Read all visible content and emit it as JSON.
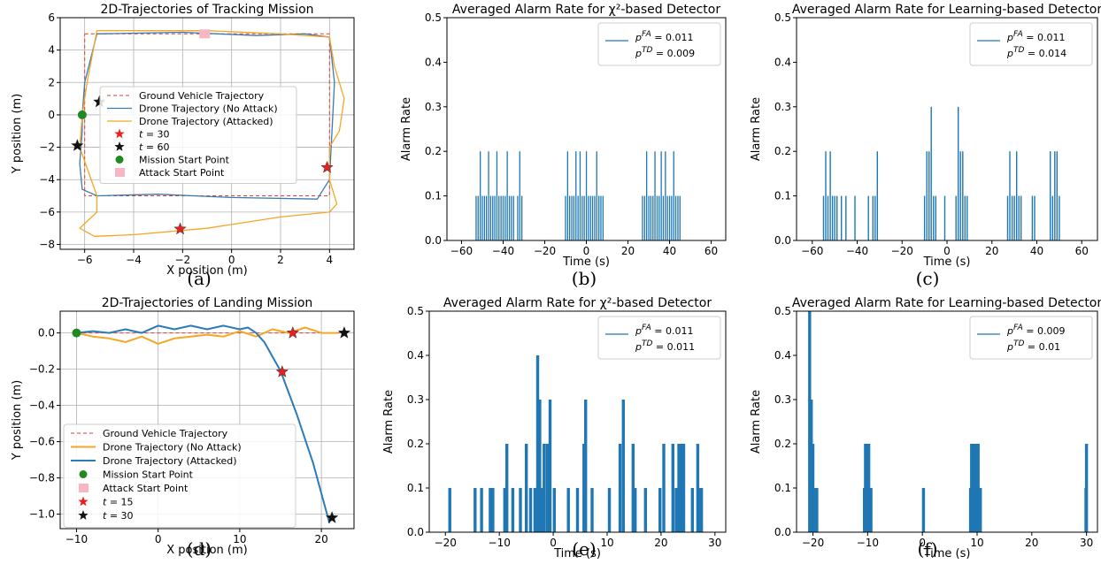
{
  "chart_data": [
    {
      "type": "line",
      "title": "2D-Trajectories of Tracking Mission",
      "xlabel": "X position (m)",
      "ylabel": "Y position (m)",
      "xlim": [
        -7,
        5
      ],
      "ylim": [
        -8.3,
        6
      ],
      "xticks": [
        -6,
        -4,
        -2,
        0,
        2,
        4
      ],
      "yticks": [
        -8,
        -6,
        -4,
        -2,
        0,
        2,
        4,
        6
      ],
      "grid": true,
      "legend": "center",
      "series": [
        {
          "name": "Ground Vehicle Trajectory",
          "color": "#e8392f",
          "style": "dashed",
          "x": [
            -6,
            4,
            4,
            -6,
            -6
          ],
          "y": [
            5,
            5,
            -5,
            -5,
            5
          ]
        },
        {
          "name": "Drone Trajectory (No Attack)",
          "color": "#3a7ab5",
          "x": [
            -6.1,
            -6,
            -5.5,
            -2,
            1,
            3,
            4,
            4.2,
            4.1,
            4.0,
            3.5,
            0,
            -3,
            -5.5,
            -6.1,
            -6.2,
            -6.1,
            -6.1
          ],
          "y": [
            0,
            2,
            5,
            5.1,
            4.9,
            5,
            4.8,
            2,
            -1,
            -4,
            -5.2,
            -5.1,
            -4.9,
            -5,
            -4.6,
            -3,
            -1,
            0
          ]
        },
        {
          "name": "Drone Trajectory (Attacked)",
          "color": "#f5a623",
          "x": [
            -6.1,
            -5.9,
            -5.5,
            -1,
            2,
            4,
            4.2,
            4.6,
            4.4,
            4,
            4,
            4.3,
            4,
            2,
            -1,
            -4,
            -5.6,
            -6.2,
            -5.5,
            -5.5,
            -6.2,
            -6.1
          ],
          "y": [
            0,
            2,
            5.2,
            5.2,
            5,
            4.8,
            3,
            1,
            -1,
            -2,
            -4,
            -5.5,
            -6,
            -6.3,
            -7,
            -7.4,
            -7.5,
            -7,
            -6,
            -5,
            -2,
            0
          ]
        }
      ],
      "markers": [
        {
          "name": "t = 30",
          "color": "#e82020",
          "symbol": "star",
          "points": [
            [
              3.9,
              -3.25
            ],
            [
              -2.1,
              -7.05
            ]
          ]
        },
        {
          "name": "t = 60",
          "color": "#111111",
          "symbol": "star",
          "points": [
            [
              -5.4,
              0.8
            ],
            [
              -6.3,
              -1.9
            ]
          ]
        },
        {
          "name": "Mission Start Point",
          "color": "#1f8a1f",
          "symbol": "circle",
          "points": [
            [
              -6.1,
              0
            ]
          ]
        },
        {
          "name": "Attack Start Point",
          "color": "#f7b6c2",
          "symbol": "square",
          "points": [
            [
              -1.1,
              5
            ]
          ]
        }
      ],
      "legend_order": [
        "Ground Vehicle Trajectory",
        "Drone Trajectory (No Attack)",
        "Drone Trajectory (Attacked)",
        "t = 30",
        "t = 60",
        "Mission Start Point",
        "Attack Start Point"
      ],
      "panel_label": "(a)"
    },
    {
      "type": "bar",
      "title": "Averaged Alarm Rate for χ²-based Detector",
      "xlabel": "Time (s)",
      "ylabel": "Alarm Rate",
      "xlim": [
        -67,
        67
      ],
      "ylim": [
        0,
        0.5
      ],
      "xticks": [
        -60,
        -40,
        -20,
        0,
        20,
        40,
        60
      ],
      "yticks": [
        0.0,
        0.1,
        0.2,
        0.3,
        0.4,
        0.5
      ],
      "color": "#1f77b4",
      "legend": "top-right",
      "legend_lines": [
        "p^FA = 0.011",
        "p^TD = 0.009"
      ],
      "x": [
        -53,
        -52,
        -51,
        -50,
        -49,
        -48,
        -47,
        -46,
        -45,
        -44,
        -43,
        -42,
        -41,
        -40,
        -39,
        -38,
        -37,
        -36,
        -35,
        -33,
        -32,
        -31,
        -10,
        -9,
        -8,
        -7,
        -6,
        -5,
        -4,
        -3,
        -2,
        -1,
        0,
        1,
        2,
        3,
        4,
        5,
        6,
        7,
        8,
        27,
        28,
        29,
        30,
        31,
        32,
        33,
        34,
        35,
        36,
        37,
        38,
        39,
        40,
        41,
        42,
        43,
        44,
        45
      ],
      "values": [
        0.1,
        0.1,
        0.2,
        0.1,
        0.1,
        0.1,
        0.2,
        0.1,
        0.1,
        0.1,
        0.2,
        0.1,
        0.1,
        0.1,
        0.1,
        0.2,
        0.1,
        0.1,
        0.1,
        0.1,
        0.2,
        0.1,
        0.1,
        0.2,
        0.1,
        0.1,
        0.1,
        0.2,
        0.1,
        0.2,
        0.1,
        0.1,
        0.2,
        0.1,
        0.1,
        0.1,
        0.1,
        0.2,
        0.1,
        0.1,
        0.1,
        0.1,
        0.1,
        0.2,
        0.1,
        0.1,
        0.1,
        0.2,
        0.1,
        0.1,
        0.2,
        0.1,
        0.2,
        0.1,
        0.1,
        0.1,
        0.2,
        0.1,
        0.1,
        0.1
      ],
      "panel_label": "(b)"
    },
    {
      "type": "bar",
      "title": "Averaged Alarm Rate for Learning-based Detector",
      "xlabel": "Time (s)",
      "ylabel": "Alarm Rate",
      "xlim": [
        -67,
        67
      ],
      "ylim": [
        0,
        0.5
      ],
      "xticks": [
        -60,
        -40,
        -20,
        0,
        20,
        40,
        60
      ],
      "yticks": [
        0.0,
        0.1,
        0.2,
        0.3,
        0.4,
        0.5
      ],
      "color": "#1f77b4",
      "legend": "top-right",
      "legend_lines": [
        "p^FA = 0.011",
        "p^TD = 0.014"
      ],
      "x": [
        -55,
        -54,
        -53,
        -52,
        -51,
        -50,
        -49,
        -47,
        -45,
        -41,
        -35,
        -33,
        -32,
        -31,
        -10,
        -9,
        -8,
        -7,
        -6,
        -5,
        4,
        5,
        6,
        7,
        8,
        9,
        -1,
        27,
        28,
        29,
        30,
        31,
        32,
        33,
        38,
        39,
        46,
        47,
        48,
        49,
        50
      ],
      "values": [
        0.1,
        0.2,
        0.1,
        0.2,
        0.1,
        0.1,
        0.1,
        0.1,
        0.1,
        0.1,
        0.1,
        0.1,
        0.1,
        0.2,
        0.1,
        0.2,
        0.2,
        0.3,
        0.1,
        0.1,
        0.1,
        0.3,
        0.2,
        0.2,
        0.1,
        0.1,
        0.1,
        0.1,
        0.2,
        0.1,
        0.1,
        0.2,
        0.1,
        0.1,
        0.1,
        0.1,
        0.2,
        0.1,
        0.2,
        0.2,
        0.1
      ],
      "panel_label": "(c)"
    },
    {
      "type": "line",
      "title": "2D-Trajectories of Landing Mission",
      "xlabel": "X position (m)",
      "ylabel": "Y position (m)",
      "xlim": [
        -12,
        24
      ],
      "ylim": [
        -1.08,
        0.12
      ],
      "xticks": [
        -10,
        0,
        10,
        20
      ],
      "yticks": [
        0.0,
        -0.2,
        -0.4,
        -0.6,
        -0.8,
        -1.0
      ],
      "grid": true,
      "legend": "bottom-left",
      "series": [
        {
          "name": "Ground Vehicle Trajectory",
          "color": "#e8392f",
          "style": "dashed",
          "x": [
            -10,
            23
          ],
          "y": [
            0,
            0
          ]
        },
        {
          "name": "Drone Trajectory (No Attack)",
          "color": "#f5a623",
          "x": [
            -10,
            -8,
            -6,
            -4,
            -2,
            0,
            2,
            4,
            6,
            8,
            10,
            12,
            14,
            16,
            18,
            20,
            22
          ],
          "y": [
            0,
            -0.02,
            -0.03,
            -0.05,
            -0.02,
            -0.06,
            -0.03,
            -0.02,
            -0.01,
            -0.02,
            0.01,
            -0.02,
            0.02,
            0.0,
            0.03,
            0.0,
            0.0
          ]
        },
        {
          "name": "Drone Trajectory (Attacked)",
          "color": "#2a7bb8",
          "x": [
            -10,
            -8,
            -6,
            -4,
            -2,
            0,
            2,
            4,
            6,
            8,
            10,
            11,
            12,
            13,
            15,
            17,
            19,
            21
          ],
          "y": [
            0,
            0.01,
            0.0,
            0.02,
            0.0,
            0.04,
            0.02,
            0.04,
            0.02,
            0.04,
            0.02,
            0.03,
            0.0,
            -0.05,
            -0.21,
            -0.45,
            -0.72,
            -1.05
          ]
        }
      ],
      "markers": [
        {
          "name": "Mission Start Point",
          "color": "#1f8a1f",
          "symbol": "circle",
          "points": [
            [
              -10,
              0
            ]
          ]
        },
        {
          "name": "Attack Start Point",
          "color": "#f7b6c2",
          "symbol": "square",
          "points": []
        },
        {
          "name": "t = 15",
          "color": "#e82020",
          "symbol": "star",
          "points": [
            [
              15.2,
              -0.215
            ],
            [
              16.5,
              0.0
            ]
          ]
        },
        {
          "name": "t = 30",
          "color": "#111111",
          "symbol": "star",
          "points": [
            [
              21.3,
              -1.02
            ],
            [
              22.8,
              0.0
            ]
          ]
        }
      ],
      "legend_order": [
        "Ground Vehicle Trajectory",
        "Drone Trajectory (No Attack)",
        "Drone Trajectory (Attacked)",
        "Mission Start Point",
        "Attack Start Point",
        "t = 15",
        "t = 30"
      ],
      "panel_label": "(d)"
    },
    {
      "type": "bar",
      "title": "Averaged Alarm Rate for χ²-based Detector",
      "xlabel": "Time (s)",
      "ylabel": "Alarm Rate",
      "xlim": [
        -23,
        32
      ],
      "ylim": [
        0,
        0.5
      ],
      "xticks": [
        -20,
        -10,
        0,
        10,
        20,
        30
      ],
      "yticks": [
        0.0,
        0.1,
        0.2,
        0.3,
        0.4,
        0.5
      ],
      "color": "#1f77b4",
      "legend": "top-right",
      "legend_lines": [
        "p^FA = 0.011",
        "p^TD = 0.011"
      ],
      "x": [
        -19.2,
        -14.5,
        -13.3,
        -11.7,
        -11.2,
        -9,
        -8.6,
        -7.5,
        -6.1,
        -5,
        -4.2,
        -3.4,
        -2.9,
        -2.5,
        -2,
        -1.7,
        -1.1,
        -0.6,
        0.2,
        2.8,
        4.5,
        5.7,
        6,
        7.2,
        10.4,
        12.4,
        13,
        14.8,
        15.2,
        17.1,
        19.8,
        20.5,
        22.2,
        22.8,
        23.3,
        23.5,
        23.8,
        24.2,
        25.8,
        26.8,
        27.2,
        27.5
      ],
      "values": [
        0.1,
        0.1,
        0.1,
        0.1,
        0.1,
        0.1,
        0.2,
        0.1,
        0.1,
        0.2,
        0.1,
        0.1,
        0.4,
        0.3,
        0.1,
        0.2,
        0.2,
        0.3,
        0.1,
        0.1,
        0.1,
        0.2,
        0.3,
        0.1,
        0.1,
        0.2,
        0.3,
        0.2,
        0.1,
        0.1,
        0.1,
        0.2,
        0.2,
        0.1,
        0.2,
        0.1,
        0.2,
        0.2,
        0.1,
        0.2,
        0.1,
        0.1
      ],
      "panel_label": "(e)"
    },
    {
      "type": "bar",
      "title": "Averaged Alarm Rate for Learning-based Detector",
      "xlabel": "Time (s)",
      "ylabel": "Alarm Rate",
      "xlim": [
        -23,
        32
      ],
      "ylim": [
        0,
        0.5
      ],
      "xticks": [
        -20,
        -10,
        0,
        10,
        20,
        30
      ],
      "yticks": [
        0.0,
        0.1,
        0.2,
        0.3,
        0.4,
        0.5
      ],
      "color": "#1f77b4",
      "legend": "top-right",
      "legend_lines": [
        "p^FA = 0.009",
        "p^TD = 0.01"
      ],
      "x": [
        -20.6,
        -20.3,
        -20,
        -19.8,
        -19.6,
        -19.3,
        -10.6,
        -10.4,
        -10.2,
        -10,
        -9.8,
        -9.6,
        -9.4,
        0.2,
        8.8,
        9,
        9.2,
        9.4,
        9.6,
        9.8,
        10,
        10.2,
        10.4,
        10.6,
        29.9,
        30
      ],
      "values": [
        0.5,
        0.3,
        0.2,
        0.1,
        0.1,
        0.1,
        0.1,
        0.2,
        0.2,
        0.1,
        0.2,
        0.1,
        0.1,
        0.1,
        0.1,
        0.2,
        0.1,
        0.2,
        0.2,
        0.1,
        0.2,
        0.2,
        0.1,
        0.1,
        0.1,
        0.2
      ],
      "panel_label": "(f)"
    }
  ]
}
